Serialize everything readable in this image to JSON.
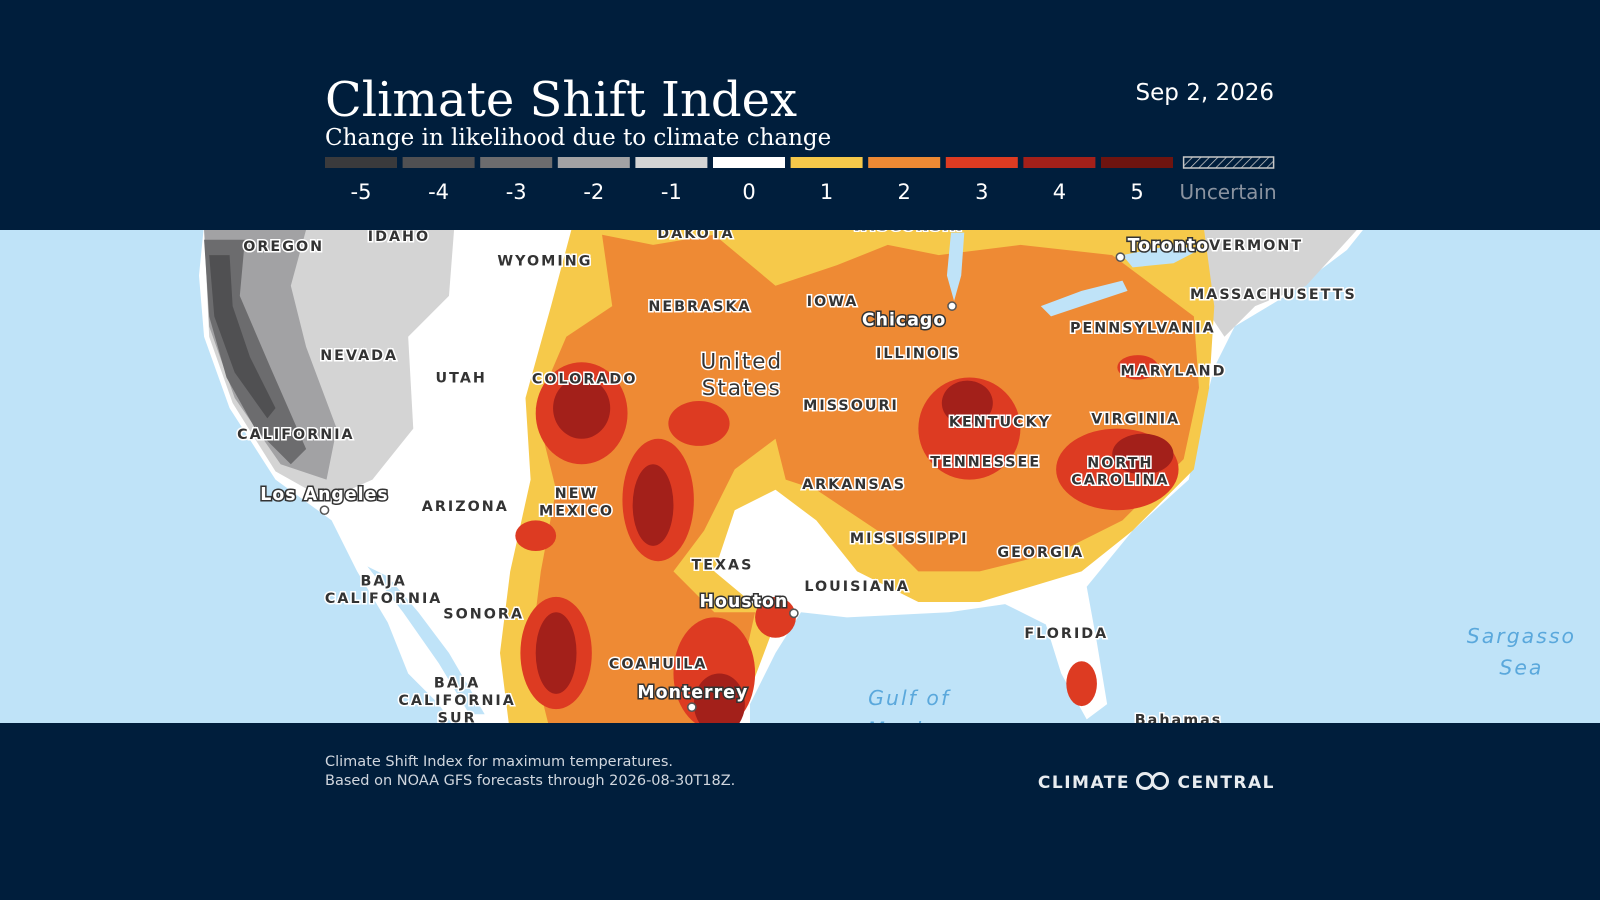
{
  "header": {
    "title": "Climate Shift Index",
    "subtitle": "Change in likelihood due to climate change",
    "date": "Sep 2, 2026"
  },
  "legend": [
    {
      "label": "-5",
      "color": "#3a3a3c"
    },
    {
      "label": "-4",
      "color": "#505052"
    },
    {
      "label": "-3",
      "color": "#6c6c6e"
    },
    {
      "label": "-2",
      "color": "#a2a2a4"
    },
    {
      "label": "-1",
      "color": "#d4d4d4"
    },
    {
      "label": "0",
      "color": "#ffffff"
    },
    {
      "label": "1",
      "color": "#f6c94a"
    },
    {
      "label": "2",
      "color": "#ee8a34"
    },
    {
      "label": "3",
      "color": "#dd3b22"
    },
    {
      "label": "4",
      "color": "#a3201a"
    },
    {
      "label": "5",
      "color": "#6e1410"
    },
    {
      "label": "Uncertain",
      "color": "hatch"
    }
  ],
  "map": {
    "labels": [
      {
        "lines": [
          "WISCONSIN"
        ]
      },
      {
        "lines": [
          "OREGON"
        ]
      },
      {
        "lines": [
          "IDAHO"
        ]
      },
      {
        "lines": [
          "WYOMING"
        ]
      },
      {
        "lines": [
          "DAKOTA"
        ]
      },
      {
        "lines": [
          "NEBRASKA"
        ]
      },
      {
        "lines": [
          "IOWA"
        ]
      },
      {
        "lines": [
          "NEVADA"
        ]
      },
      {
        "lines": [
          "UTAH"
        ]
      },
      {
        "lines": [
          "COLORADO"
        ]
      },
      {
        "lines": [
          "ILLINOIS"
        ]
      },
      {
        "lines": [
          "PENNSYLVANIA"
        ]
      },
      {
        "lines": [
          "MASSACHUSETTS"
        ]
      },
      {
        "lines": [
          "VERMONT"
        ]
      },
      {
        "lines": [
          "MARYLAND"
        ]
      },
      {
        "lines": [
          "MISSOURI"
        ]
      },
      {
        "lines": [
          "KENTUCKY"
        ]
      },
      {
        "lines": [
          "VIRGINIA"
        ]
      },
      {
        "lines": [
          "CALIFORNIA"
        ]
      },
      {
        "lines": [
          "TENNESSEE"
        ]
      },
      {
        "lines": [
          "NORTH",
          "CAROLINA"
        ]
      },
      {
        "lines": [
          "ARKANSAS"
        ]
      },
      {
        "lines": [
          "ARIZONA"
        ]
      },
      {
        "lines": [
          "NEW",
          "MEXICO"
        ]
      },
      {
        "lines": [
          "MISSISSIPPI"
        ]
      },
      {
        "lines": [
          "GEORGIA"
        ]
      },
      {
        "lines": [
          "TEXAS"
        ]
      },
      {
        "lines": [
          "LOUISIANA"
        ]
      },
      {
        "lines": [
          "BAJA",
          "CALIFORNIA"
        ]
      },
      {
        "lines": [
          "SONORA"
        ]
      },
      {
        "lines": [
          "FLORIDA"
        ]
      },
      {
        "lines": [
          "COAHUILA"
        ]
      },
      {
        "lines": [
          "BAJA",
          "CALIFORNIA",
          "SUR"
        ]
      }
    ],
    "country": [
      "United",
      "States"
    ],
    "cities": [
      "Toronto",
      "Chicago",
      "Los Angeles",
      "Houston",
      "Monterrey"
    ],
    "water": [
      {
        "lines": [
          "Gulf of",
          "Mexico"
        ]
      },
      {
        "lines": [
          "Sargasso",
          "Sea"
        ]
      }
    ],
    "islands": [
      "Bahamas"
    ]
  },
  "footer": {
    "lines": [
      "Climate Shift Index for maximum temperatures.",
      "Based on NOAA GFS forecasts through 2026-08-30T18Z."
    ],
    "logo": [
      "CLIMATE",
      "CENTRAL"
    ]
  }
}
